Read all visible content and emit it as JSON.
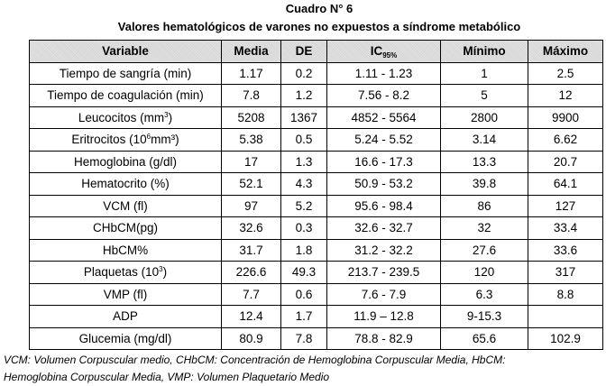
{
  "title": "Cuadro N° 6",
  "subtitle": "Valores hematológicos de varones no expuestos a síndrome metabólico",
  "headers": {
    "variable": "Variable",
    "media": "Media",
    "de": "DE",
    "ic": "IC",
    "ic_sub": "95%",
    "minimo": "Mínimo",
    "maximo": "Máximo"
  },
  "rows": [
    {
      "variable": "Tiempo de sangría (min)",
      "sup": "",
      "suffix": "",
      "media": "1.17",
      "de": "0.2",
      "ic": "1.11 - 1.23",
      "min": "1",
      "max": "2.5"
    },
    {
      "variable": "Tiempo de coagulación (min)",
      "sup": "",
      "suffix": "",
      "media": "7.8",
      "de": "1.2",
      "ic": "7.56 - 8.2",
      "min": "5",
      "max": "12"
    },
    {
      "variable": "Leucocitos (mm",
      "sup": "3",
      "suffix": ")",
      "media": "5208",
      "de": "1367",
      "ic": "4852 - 5564",
      "min": "2800",
      "max": "9900"
    },
    {
      "variable": "Eritrocitos (10",
      "sup": "6",
      "suffix": "mm³)",
      "media": "5.38",
      "de": "0.5",
      "ic": "5.24 - 5.52",
      "min": "3.14",
      "max": "6.62"
    },
    {
      "variable": "Hemoglobina (g/dl)",
      "sup": "",
      "suffix": "",
      "media": "17",
      "de": "1.3",
      "ic": "16.6 - 17.3",
      "min": "13.3",
      "max": "20.7"
    },
    {
      "variable": "Hematocrito (%)",
      "sup": "",
      "suffix": "",
      "media": "52.1",
      "de": "4.3",
      "ic": "50.9 - 53.2",
      "min": "39.8",
      "max": "64.1"
    },
    {
      "variable": "VCM (fl)",
      "sup": "",
      "suffix": "",
      "media": "97",
      "de": "5.2",
      "ic": "95.6 - 98.4",
      "min": "86",
      "max": "127"
    },
    {
      "variable": "CHbCM(pg)",
      "sup": "",
      "suffix": "",
      "media": "32.6",
      "de": "0.3",
      "ic": "32.6 - 32.7",
      "min": "32",
      "max": "33.4"
    },
    {
      "variable": "HbCM%",
      "sup": "",
      "suffix": "",
      "media": "31.7",
      "de": "1.8",
      "ic": "31.2 - 32.2",
      "min": "27.6",
      "max": "33.6"
    },
    {
      "variable": "Plaquetas (10",
      "sup": "3",
      "suffix": ")",
      "media": "226.6",
      "de": "49.3",
      "ic": "213.7 - 239.5",
      "min": "120",
      "max": "317"
    },
    {
      "variable": "VMP (fl)",
      "sup": "",
      "suffix": "",
      "media": "7.7",
      "de": "0.6",
      "ic": "7.6 - 7.9",
      "min": "6.3",
      "max": "8.8"
    },
    {
      "variable": "ADP",
      "sup": "",
      "suffix": "",
      "media": "12.4",
      "de": "1.7",
      "ic": "11.9 – 12.8",
      "min": "9-15.3",
      "max": ""
    },
    {
      "variable": "Glucemia (mg/dl)",
      "sup": "",
      "suffix": "",
      "media": "80.9",
      "de": "7.8",
      "ic": "78.8 - 82.9",
      "min": "65.6",
      "max": "102.9"
    }
  ],
  "footnote_1": "VCM: Volumen Corpuscular medio, CHbCM: Concentración de Hemoglobina Corpuscular Media, HbCM:",
  "footnote_2": "Hemoglobina Corpuscular Media, VMP: Volumen Plaquetario Medio"
}
